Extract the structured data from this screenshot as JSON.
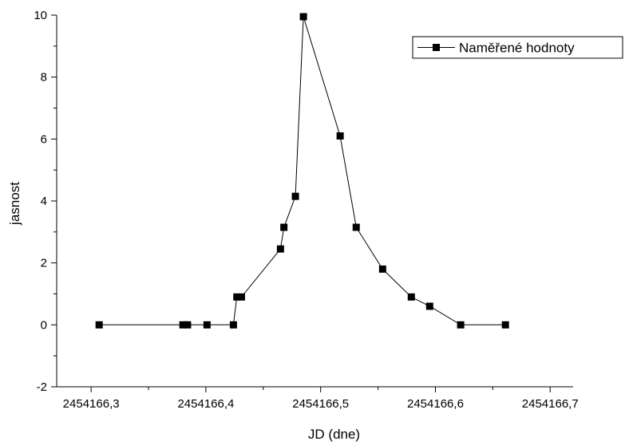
{
  "chart_data": {
    "type": "line",
    "title": "",
    "xlabel": "JD (dne)",
    "ylabel": "jasnost",
    "xlim": [
      2454166.27,
      2454166.72
    ],
    "ylim": [
      -2,
      10
    ],
    "x_ticks": [
      2454166.3,
      2454166.4,
      2454166.5,
      2454166.6,
      2454166.7
    ],
    "x_tick_labels": [
      "2454166,3",
      "2454166,4",
      "2454166,5",
      "2454166,6",
      "2454166,7"
    ],
    "y_ticks": [
      -2,
      0,
      2,
      4,
      6,
      8,
      10
    ],
    "y_tick_labels": [
      "-2",
      "0",
      "2",
      "4",
      "6",
      "8",
      "10"
    ],
    "grid": false,
    "legend_position": "top-right",
    "series": [
      {
        "name": "Naměřené hodnoty",
        "color": "#000000",
        "marker": "square",
        "points": [
          {
            "x": 2454166.307,
            "y": 0
          },
          {
            "x": 2454166.38,
            "y": 0
          },
          {
            "x": 2454166.384,
            "y": 0
          },
          {
            "x": 2454166.401,
            "y": 0
          },
          {
            "x": 2454166.424,
            "y": 0
          },
          {
            "x": 2454166.427,
            "y": 0.9
          },
          {
            "x": 2454166.431,
            "y": 0.9
          },
          {
            "x": 2454166.465,
            "y": 2.45
          },
          {
            "x": 2454166.468,
            "y": 3.15
          },
          {
            "x": 2454166.478,
            "y": 4.15
          },
          {
            "x": 2454166.485,
            "y": 9.95
          },
          {
            "x": 2454166.517,
            "y": 6.1
          },
          {
            "x": 2454166.531,
            "y": 3.15
          },
          {
            "x": 2454166.554,
            "y": 1.8
          },
          {
            "x": 2454166.579,
            "y": 0.9
          },
          {
            "x": 2454166.595,
            "y": 0.6
          },
          {
            "x": 2454166.622,
            "y": 0
          },
          {
            "x": 2454166.661,
            "y": 0
          }
        ]
      }
    ]
  }
}
